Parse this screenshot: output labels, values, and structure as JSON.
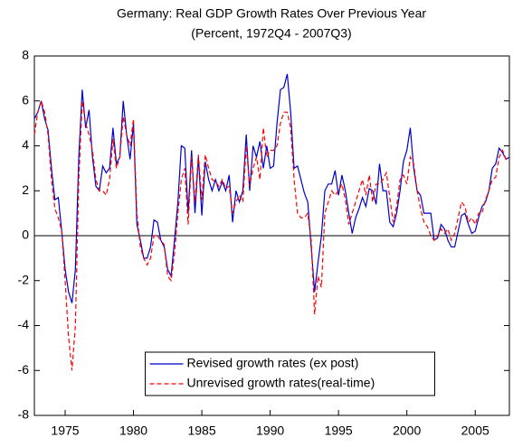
{
  "chart_data": {
    "type": "line",
    "title": "Germany: Real GDP Growth Rates Over Previous Year",
    "subtitle": "(Percent, 1972Q4 - 2007Q3)",
    "x": [
      1972.75,
      1973,
      1973.25,
      1973.5,
      1973.75,
      1974,
      1974.25,
      1974.5,
      1974.75,
      1975,
      1975.25,
      1975.5,
      1975.75,
      1976,
      1976.25,
      1976.5,
      1976.75,
      1977,
      1977.25,
      1977.5,
      1977.75,
      1978,
      1978.25,
      1978.5,
      1978.75,
      1979,
      1979.25,
      1979.5,
      1979.75,
      1980,
      1980.25,
      1980.5,
      1980.75,
      1981,
      1981.25,
      1981.5,
      1981.75,
      1982,
      1982.25,
      1982.5,
      1982.75,
      1983,
      1983.25,
      1983.5,
      1983.75,
      1984,
      1984.25,
      1984.5,
      1984.75,
      1985,
      1985.25,
      1985.5,
      1985.75,
      1986,
      1986.25,
      1986.5,
      1986.75,
      1987,
      1987.25,
      1987.5,
      1987.75,
      1988,
      1988.25,
      1988.5,
      1988.75,
      1989,
      1989.25,
      1989.5,
      1989.75,
      1990,
      1990.25,
      1990.5,
      1990.75,
      1991,
      1991.25,
      1991.5,
      1991.75,
      1992,
      1992.25,
      1992.5,
      1992.75,
      1993,
      1993.25,
      1993.5,
      1993.75,
      1994,
      1994.25,
      1994.5,
      1994.75,
      1995,
      1995.25,
      1995.5,
      1995.75,
      1996,
      1996.25,
      1996.5,
      1996.75,
      1997,
      1997.25,
      1997.5,
      1997.75,
      1998,
      1998.25,
      1998.5,
      1998.75,
      1999,
      1999.25,
      1999.5,
      1999.75,
      2000,
      2000.25,
      2000.5,
      2000.75,
      2001,
      2001.25,
      2001.5,
      2001.75,
      2002,
      2002.25,
      2002.5,
      2002.75,
      2003,
      2003.25,
      2003.5,
      2003.75,
      2004,
      2004.25,
      2004.5,
      2004.75,
      2005,
      2005.25,
      2005.5,
      2005.75,
      2006,
      2006.25,
      2006.5,
      2006.75,
      2007,
      2007.25,
      2007.5
    ],
    "series": [
      {
        "name": "Revised growth rates (ex post)",
        "color": "#0000cc",
        "dash": false,
        "values": [
          5.2,
          5.5,
          6.0,
          5.2,
          4.7,
          3.0,
          1.6,
          1.7,
          0.2,
          -1.5,
          -2.5,
          -3.0,
          -1.5,
          3.5,
          6.5,
          4.8,
          5.6,
          3.5,
          2.2,
          2.0,
          3.1,
          2.8,
          3.0,
          4.8,
          3.2,
          3.5,
          6.0,
          4.5,
          3.4,
          5.0,
          0.5,
          -0.2,
          -1.0,
          -1.0,
          -0.5,
          0.7,
          0.6,
          -0.2,
          -0.5,
          -1.5,
          -1.8,
          -0.2,
          1.5,
          4.0,
          3.9,
          1.0,
          3.8,
          1.0,
          3.5,
          0.9,
          3.3,
          2.5,
          2.0,
          2.5,
          2.0,
          2.4,
          2.0,
          2.7,
          0.6,
          2.0,
          1.5,
          2.0,
          4.5,
          2.0,
          4.0,
          3.5,
          4.2,
          3.0,
          4.0,
          3.0,
          3.1,
          5.0,
          6.5,
          6.6,
          7.2,
          5.5,
          3.0,
          3.1,
          2.5,
          1.9,
          1.5,
          -0.5,
          -2.5,
          -1.2,
          0.0,
          2.0,
          2.3,
          2.3,
          2.9,
          1.8,
          2.7,
          2.0,
          1.0,
          0.1,
          0.8,
          1.2,
          1.7,
          1.3,
          2.1,
          2.0,
          1.4,
          3.2,
          2.0,
          2.0,
          0.6,
          0.4,
          1.0,
          2.0,
          3.3,
          3.8,
          4.8,
          3.0,
          2.0,
          1.8,
          1.0,
          1.0,
          1.0,
          -0.2,
          -0.1,
          0.5,
          0.3,
          -0.2,
          -0.5,
          -0.5,
          0.2,
          0.9,
          1.0,
          0.5,
          0.1,
          0.2,
          0.8,
          1.3,
          1.5,
          2.0,
          3.0,
          3.2,
          3.9,
          3.7,
          3.4,
          3.5
        ]
      },
      {
        "name": "Unrevised growth rates(real-time)",
        "color": "#ff0000",
        "dash": true,
        "values": [
          4.5,
          5.5,
          6.0,
          5.5,
          4.5,
          2.5,
          1.2,
          0.8,
          0.2,
          -2.0,
          -4.5,
          -6.0,
          -4.0,
          2.5,
          6.0,
          5.0,
          4.5,
          3.8,
          2.5,
          2.0,
          2.0,
          1.8,
          2.5,
          4.3,
          3.0,
          3.5,
          5.3,
          4.5,
          4.0,
          5.2,
          1.0,
          -0.5,
          -1.0,
          -1.3,
          -1.0,
          0.0,
          0.0,
          -0.2,
          -0.4,
          -1.8,
          -2.0,
          -0.8,
          1.0,
          2.5,
          3.0,
          0.5,
          3.5,
          1.5,
          3.6,
          1.6,
          3.6,
          3.0,
          2.5,
          2.4,
          2.2,
          2.5,
          2.1,
          2.2,
          1.0,
          1.5,
          1.8,
          1.5,
          4.0,
          2.2,
          3.0,
          3.5,
          2.5,
          4.8,
          3.5,
          3.8,
          3.8,
          4.0,
          5.0,
          5.5,
          5.5,
          4.8,
          2.5,
          1.0,
          0.8,
          0.8,
          1.0,
          -0.2,
          -3.5,
          -1.8,
          -2.3,
          1.0,
          1.5,
          2.0,
          1.8,
          2.0,
          2.3,
          1.6,
          0.5,
          1.0,
          1.5,
          2.0,
          2.5,
          1.8,
          2.7,
          1.5,
          2.3,
          2.3,
          2.5,
          2.8,
          1.7,
          0.6,
          1.3,
          2.5,
          2.7,
          2.3,
          3.5,
          3.2,
          2.0,
          1.2,
          0.6,
          0.4,
          0.0,
          -0.2,
          0.0,
          0.3,
          0.1,
          0.3,
          -0.2,
          0.1,
          0.8,
          1.5,
          1.3,
          0.6,
          0.8,
          0.5,
          1.0,
          1.0,
          1.6,
          2.0,
          2.5,
          2.6,
          3.5,
          3.8,
          3.4,
          3.5
        ]
      }
    ],
    "xlim": [
      1972.75,
      2007.5
    ],
    "xticks": [
      1975,
      1980,
      1985,
      1990,
      1995,
      2000,
      2005
    ],
    "ylim": [
      -8,
      8
    ],
    "yticks": [
      -8,
      -6,
      -4,
      -2,
      0,
      2,
      4,
      6,
      8
    ],
    "zero_line": true,
    "legend": "lower center"
  }
}
